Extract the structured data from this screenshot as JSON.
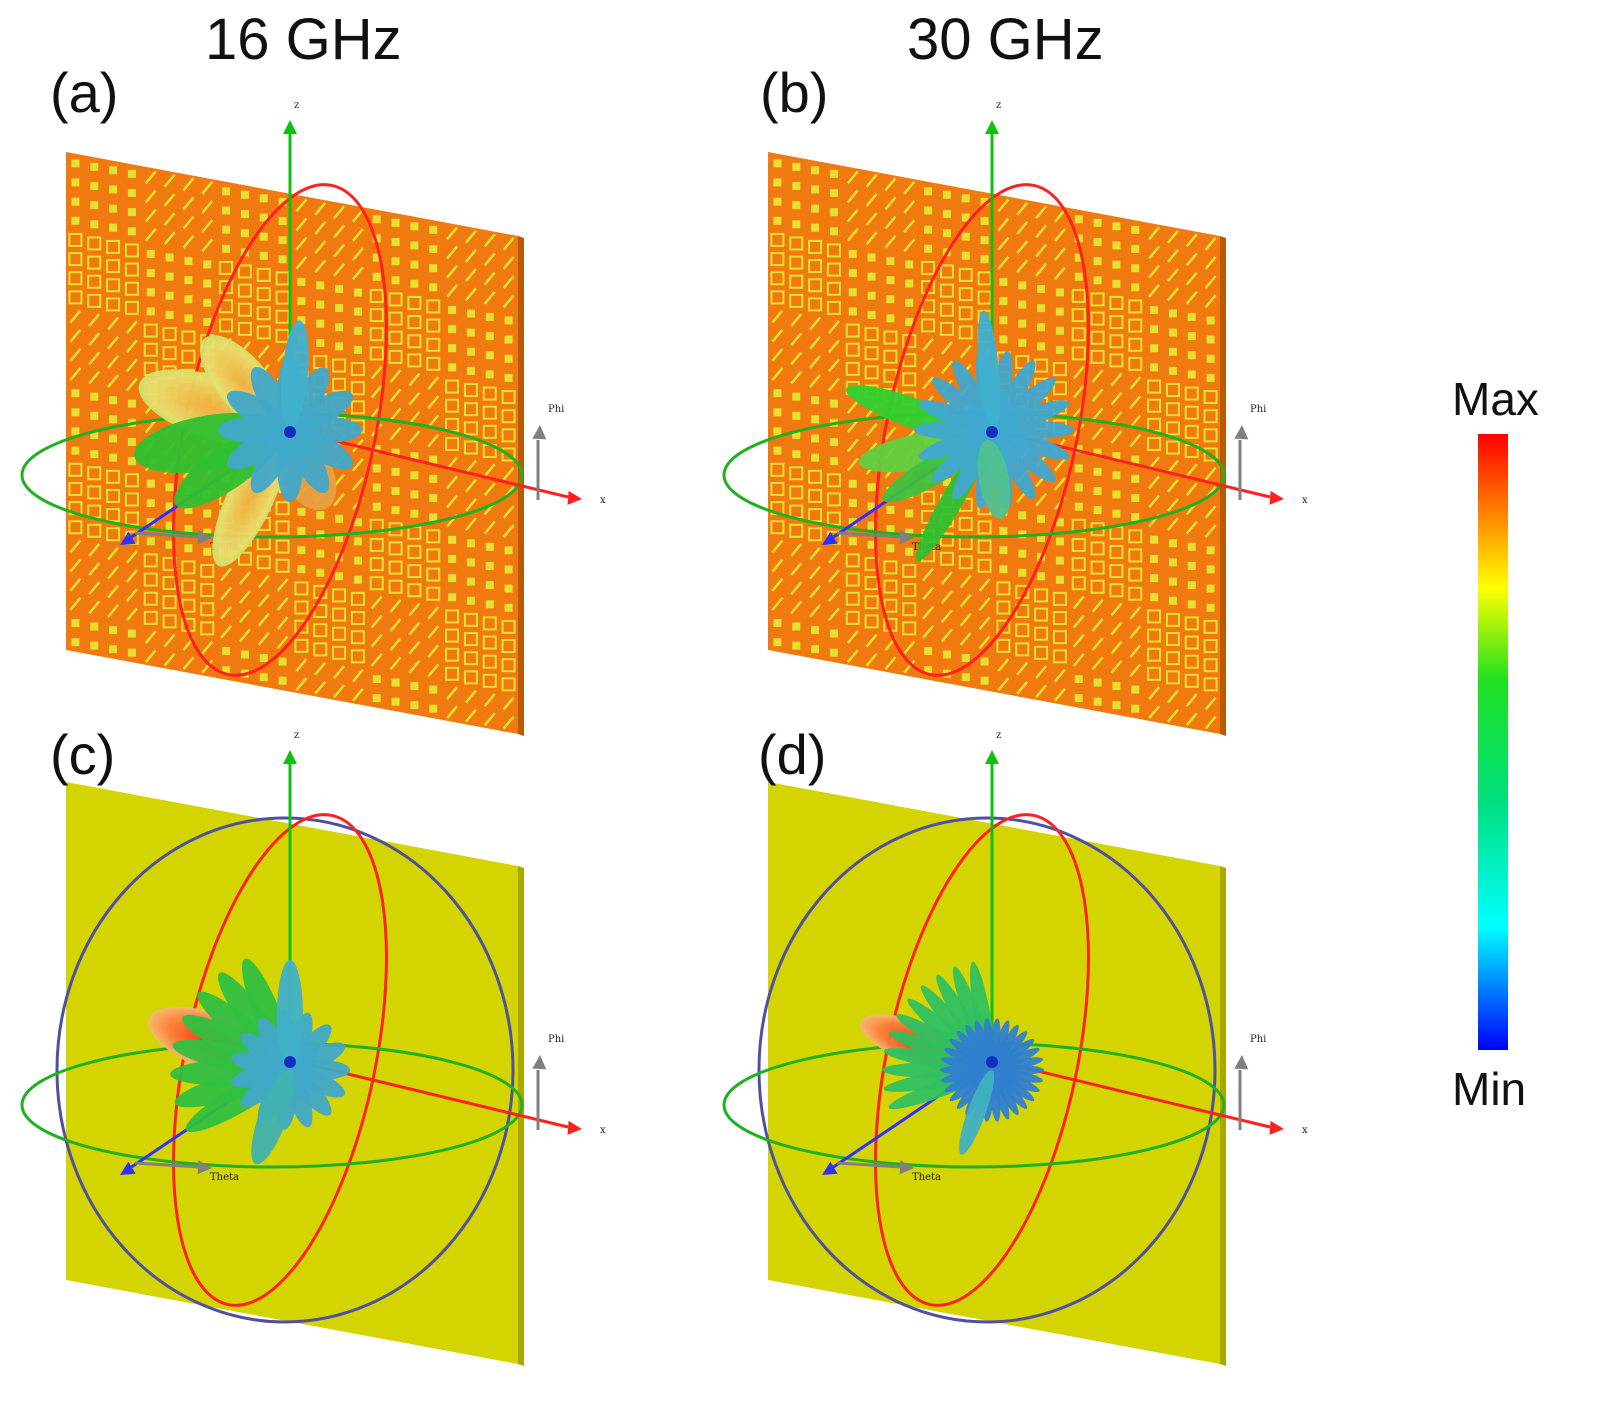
{
  "columns": [
    "16 GHz",
    "30 GHz"
  ],
  "panels": [
    {
      "label": "(a)",
      "surface": "metasurface",
      "frequency": "16 GHz"
    },
    {
      "label": "(b)",
      "surface": "metasurface",
      "frequency": "30 GHz"
    },
    {
      "label": "(c)",
      "surface": "plain",
      "frequency": "16 GHz"
    },
    {
      "label": "(d)",
      "surface": "plain",
      "frequency": "30 GHz"
    }
  ],
  "axis_labels": {
    "z": "z",
    "x": "x",
    "phi": "Phi",
    "theta": "Theta"
  },
  "colorbar": {
    "max": "Max",
    "min": "Min",
    "stops": [
      "#ff0000",
      "#ff8800",
      "#ffff00",
      "#00e000",
      "#00ffff",
      "#0000ff"
    ]
  },
  "colors": {
    "metasurface": "#f07a10",
    "plain": "#d4d400",
    "pattern": "#e8e030",
    "z_axis": "#10c010",
    "x_axis": "#ff2020",
    "y_axis": "#3030ff",
    "phi_circle": "#20b020",
    "theta_circle": "#ff2020",
    "sphere": "#5050a0"
  }
}
